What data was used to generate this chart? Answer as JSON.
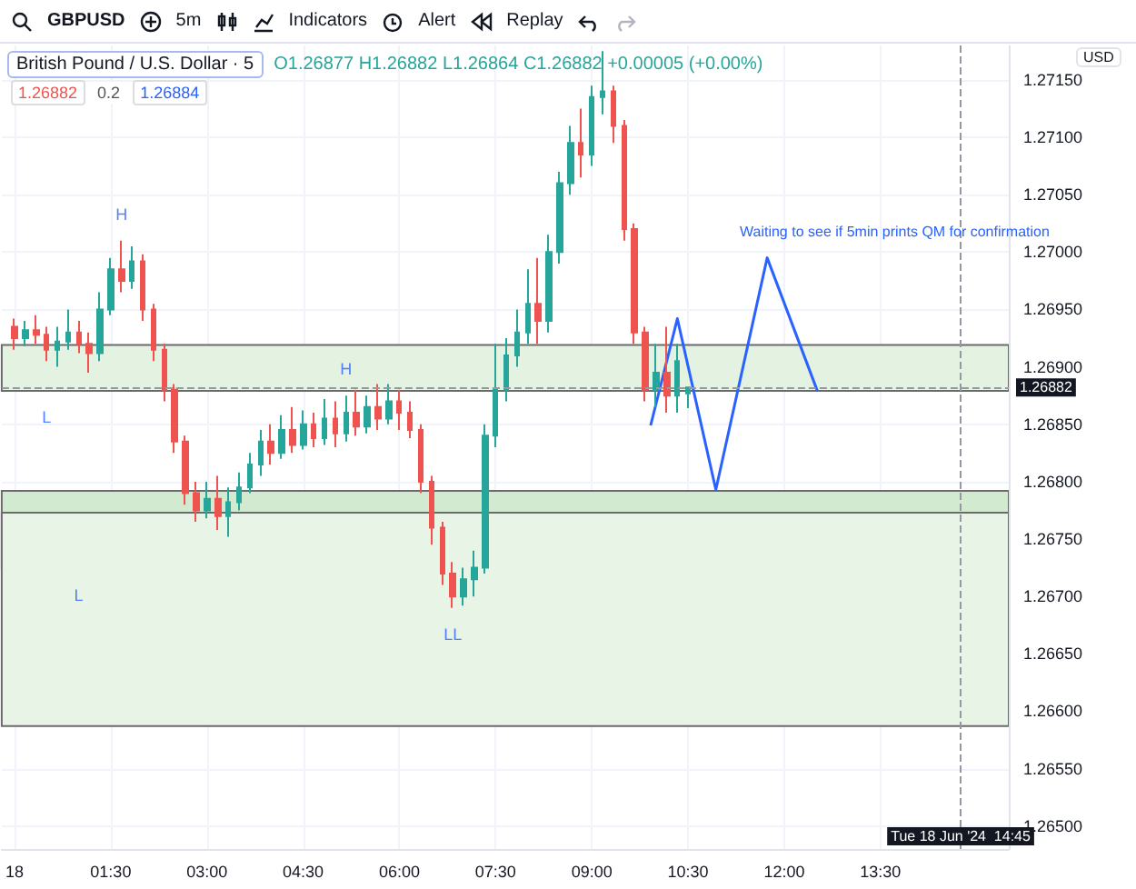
{
  "chart_data": {
    "type": "candlestick",
    "title": "British Pound / U.S. Dollar · 5",
    "subtitle": "O1.26877 H1.26882 L1.26864 C1.26882 +0.00005 (+0.00%)",
    "ylabel": "USD",
    "x": [
      "2024-06-18T00:00",
      "2024-06-18T00:10",
      "2024-06-18T00:20",
      "2024-06-18T00:30",
      "2024-06-18T00:40",
      "2024-06-18T00:50",
      "2024-06-18T01:00",
      "2024-06-18T01:10",
      "2024-06-18T01:20",
      "2024-06-18T01:30",
      "2024-06-18T01:40",
      "2024-06-18T01:50",
      "2024-06-18T02:00",
      "2024-06-18T02:10",
      "2024-06-18T02:20",
      "2024-06-18T02:30",
      "2024-06-18T02:40",
      "2024-06-18T02:50",
      "2024-06-18T03:00",
      "2024-06-18T03:10",
      "2024-06-18T03:20",
      "2024-06-18T03:30",
      "2024-06-18T03:40",
      "2024-06-18T03:50",
      "2024-06-18T04:00",
      "2024-06-18T04:10",
      "2024-06-18T04:20",
      "2024-06-18T04:30",
      "2024-06-18T04:40",
      "2024-06-18T04:50",
      "2024-06-18T05:00",
      "2024-06-18T05:10",
      "2024-06-18T05:20",
      "2024-06-18T05:30",
      "2024-06-18T05:40",
      "2024-06-18T05:50",
      "2024-06-18T06:00",
      "2024-06-18T06:10",
      "2024-06-18T06:20",
      "2024-06-18T06:30",
      "2024-06-18T06:40",
      "2024-06-18T06:50",
      "2024-06-18T07:00",
      "2024-06-18T07:10",
      "2024-06-18T07:20",
      "2024-06-18T07:30",
      "2024-06-18T07:40",
      "2024-06-18T07:50",
      "2024-06-18T08:00",
      "2024-06-18T08:10",
      "2024-06-18T08:20",
      "2024-06-18T08:30",
      "2024-06-18T08:40",
      "2024-06-18T08:50",
      "2024-06-18T09:00",
      "2024-06-18T09:10",
      "2024-06-18T09:20",
      "2024-06-18T09:30",
      "2024-06-18T09:40",
      "2024-06-18T09:50",
      "2024-06-18T10:00",
      "2024-06-18T10:10",
      "2024-06-18T10:20",
      "2024-06-18T10:30"
    ],
    "ohlc": [
      [
        1.26935,
        1.26942,
        1.26915,
        1.26925
      ],
      [
        1.26925,
        1.2694,
        1.26918,
        1.26932
      ],
      [
        1.26932,
        1.26945,
        1.2692,
        1.26928
      ],
      [
        1.26928,
        1.26935,
        1.26905,
        1.26915
      ],
      [
        1.26915,
        1.26935,
        1.269,
        1.26922
      ],
      [
        1.26922,
        1.2695,
        1.26915,
        1.2693
      ],
      [
        1.2693,
        1.2694,
        1.26912,
        1.2692
      ],
      [
        1.2692,
        1.2693,
        1.26895,
        1.26912
      ],
      [
        1.26912,
        1.26965,
        1.26905,
        1.2695
      ],
      [
        1.2695,
        1.26995,
        1.26945,
        1.26985
      ],
      [
        1.26985,
        1.2701,
        1.26965,
        1.26975
      ],
      [
        1.26975,
        1.27005,
        1.26968,
        1.26992
      ],
      [
        1.26992,
        1.26998,
        1.2694,
        1.2695
      ],
      [
        1.2695,
        1.26955,
        1.26905,
        1.26915
      ],
      [
        1.26915,
        1.2692,
        1.2687,
        1.2688
      ],
      [
        1.2688,
        1.26885,
        1.26825,
        1.26835
      ],
      [
        1.26835,
        1.2684,
        1.2678,
        1.2679
      ],
      [
        1.2679,
        1.268,
        1.26765,
        1.26775
      ],
      [
        1.26775,
        1.268,
        1.26768,
        1.26785
      ],
      [
        1.26785,
        1.26805,
        1.26758,
        1.2677
      ],
      [
        1.2677,
        1.26795,
        1.26752,
        1.26782
      ],
      [
        1.26782,
        1.26808,
        1.26775,
        1.26795
      ],
      [
        1.26795,
        1.26825,
        1.2679,
        1.26815
      ],
      [
        1.26815,
        1.26845,
        1.26805,
        1.26835
      ],
      [
        1.26835,
        1.2685,
        1.26815,
        1.26825
      ],
      [
        1.26825,
        1.26858,
        1.2682,
        1.26845
      ],
      [
        1.26845,
        1.26865,
        1.26825,
        1.26832
      ],
      [
        1.26832,
        1.26862,
        1.26828,
        1.2685
      ],
      [
        1.2685,
        1.2686,
        1.2683,
        1.26838
      ],
      [
        1.26838,
        1.26872,
        1.26832,
        1.26855
      ],
      [
        1.26855,
        1.2687,
        1.2683,
        1.26842
      ],
      [
        1.26842,
        1.26875,
        1.26835,
        1.2686
      ],
      [
        1.2686,
        1.2688,
        1.2684,
        1.26848
      ],
      [
        1.26848,
        1.26875,
        1.26842,
        1.26865
      ],
      [
        1.26865,
        1.26885,
        1.26845,
        1.26855
      ],
      [
        1.26855,
        1.26885,
        1.2685,
        1.2687
      ],
      [
        1.2687,
        1.2688,
        1.26845,
        1.2686
      ],
      [
        1.2686,
        1.2687,
        1.26838,
        1.26845
      ],
      [
        1.26845,
        1.2685,
        1.2679,
        1.268
      ],
      [
        1.268,
        1.26805,
        1.26745,
        1.2676
      ],
      [
        1.2676,
        1.26765,
        1.2671,
        1.2672
      ],
      [
        1.2672,
        1.2673,
        1.2669,
        1.267
      ],
      [
        1.267,
        1.26725,
        1.26692,
        1.26715
      ],
      [
        1.26715,
        1.2674,
        1.267,
        1.26725
      ],
      [
        1.26725,
        1.2685,
        1.2672,
        1.2684
      ],
      [
        1.2684,
        1.2692,
        1.2683,
        1.2688
      ],
      [
        1.2688,
        1.26925,
        1.2687,
        1.2691
      ],
      [
        1.2691,
        1.2695,
        1.269,
        1.2693
      ],
      [
        1.2693,
        1.26985,
        1.2692,
        1.26955
      ],
      [
        1.26955,
        1.26995,
        1.2692,
        1.2694
      ],
      [
        1.2694,
        1.27015,
        1.2693,
        1.27
      ],
      [
        1.27,
        1.2707,
        1.2699,
        1.2706
      ],
      [
        1.2706,
        1.2711,
        1.2705,
        1.27095
      ],
      [
        1.27095,
        1.27125,
        1.27065,
        1.27085
      ],
      [
        1.27085,
        1.27145,
        1.27075,
        1.27135
      ],
      [
        1.27135,
        1.27175,
        1.2712,
        1.2714
      ],
      [
        1.2714,
        1.27145,
        1.27095,
        1.2711
      ],
      [
        1.2711,
        1.27115,
        1.2701,
        1.2702
      ],
      [
        1.2702,
        1.27025,
        1.2692,
        1.2693
      ],
      [
        1.2693,
        1.26935,
        1.2687,
        1.2688
      ],
      [
        1.2688,
        1.2692,
        1.26865,
        1.26895
      ],
      [
        1.26895,
        1.26935,
        1.2686,
        1.26875
      ],
      [
        1.26875,
        1.2692,
        1.2686,
        1.26905
      ],
      [
        1.26877,
        1.26882,
        1.26864,
        1.26882
      ]
    ],
    "colors": [
      "#ef5350",
      "#26a69a",
      "#ef5350",
      "#ef5350",
      "#26a69a",
      "#26a69a",
      "#ef5350",
      "#ef5350",
      "#26a69a",
      "#26a69a",
      "#ef5350",
      "#26a69a",
      "#ef5350",
      "#ef5350",
      "#ef5350",
      "#ef5350",
      "#ef5350",
      "#ef5350",
      "#26a69a",
      "#ef5350",
      "#26a69a",
      "#26a69a",
      "#26a69a",
      "#26a69a",
      "#ef5350",
      "#26a69a",
      "#ef5350",
      "#26a69a",
      "#ef5350",
      "#26a69a",
      "#ef5350",
      "#26a69a",
      "#ef5350",
      "#26a69a",
      "#ef5350",
      "#26a69a",
      "#ef5350",
      "#ef5350",
      "#ef5350",
      "#ef5350",
      "#ef5350",
      "#ef5350",
      "#26a69a",
      "#26a69a",
      "#26a69a",
      "#26a69a",
      "#26a69a",
      "#26a69a",
      "#26a69a",
      "#ef5350",
      "#26a69a",
      "#26a69a",
      "#26a69a",
      "#ef5350",
      "#26a69a",
      "#26a69a",
      "#ef5350",
      "#ef5350",
      "#ef5350",
      "#ef5350",
      "#26a69a",
      "#ef5350",
      "#26a69a",
      "#26a69a"
    ],
    "series": [
      {
        "type": "line",
        "color": "#2962ff",
        "x": [
          "2024-06-18T09:55",
          "2024-06-18T10:20",
          "2024-06-18T10:56",
          "2024-06-18T11:44",
          "2024-06-18T12:31"
        ],
        "values": [
          1.26849,
          1.26942,
          1.26793,
          1.26995,
          1.26879
        ]
      }
    ],
    "marker": "none",
    "line_style": "solid",
    "xlim": [
      "2024-06-17T23:48",
      "2024-06-18T15:30"
    ],
    "xticks": [
      {
        "value": "2024-06-18T00:00",
        "label": "18"
      },
      {
        "value": "2024-06-18T01:30",
        "label": "01:30"
      },
      {
        "value": "2024-06-18T03:00",
        "label": "03:00"
      },
      {
        "value": "2024-06-18T04:30",
        "label": "04:30"
      },
      {
        "value": "2024-06-18T06:00",
        "label": "06:00"
      },
      {
        "value": "2024-06-18T07:30",
        "label": "07:30"
      },
      {
        "value": "2024-06-18T09:00",
        "label": "09:00"
      },
      {
        "value": "2024-06-18T10:30",
        "label": "10:30"
      },
      {
        "value": "2024-06-18T12:00",
        "label": "12:00"
      },
      {
        "value": "2024-06-18T13:30",
        "label": "13:30"
      }
    ],
    "ylim": [
      1.2648,
      1.2718
    ],
    "yticks": [
      {
        "value": 1.265,
        "label": "1.26500"
      },
      {
        "value": 1.2655,
        "label": "1.26550"
      },
      {
        "value": 1.266,
        "label": "1.26600"
      },
      {
        "value": 1.2665,
        "label": "1.26650"
      },
      {
        "value": 1.267,
        "label": "1.26700"
      },
      {
        "value": 1.2675,
        "label": "1.26750"
      },
      {
        "value": 1.268,
        "label": "1.26800"
      },
      {
        "value": 1.2685,
        "label": "1.26850"
      },
      {
        "value": 1.269,
        "label": "1.26900"
      },
      {
        "value": 1.2695,
        "label": "1.26950"
      },
      {
        "value": 1.27,
        "label": "1.27000"
      },
      {
        "value": 1.2705,
        "label": "1.27050"
      },
      {
        "value": 1.271,
        "label": "1.27100"
      },
      {
        "value": 1.2715,
        "label": "1.27150"
      }
    ],
    "grid": true,
    "bands": [
      {
        "axis": "y",
        "from": 1.26879,
        "to": 1.26919,
        "color": "#e3f2e1"
      },
      {
        "axis": "y",
        "from": 1.26724,
        "to": 1.26792,
        "color": "#d2ebd0"
      },
      {
        "axis": "y",
        "from": 1.26587,
        "to": 1.26773,
        "color": "#e8f5e6"
      }
    ],
    "ref_lines": [
      {
        "axis": "y",
        "value": 1.26882,
        "label": "1.26882",
        "color": "#9598a1",
        "line_style": "dashed"
      },
      {
        "axis": "x",
        "value": "2024-06-18T14:45",
        "label": "Tue 18 Jun '24  14:45",
        "color": "#9598a1",
        "line_style": "dashed"
      }
    ],
    "annotations": [
      "GBPUSD",
      "5m",
      "Indicators",
      "Alert",
      "Replay",
      "1.26882",
      "0.2",
      "1.26884",
      "Waiting to see if 5min prints QM for confirmation",
      {
        "text": "H",
        "x": "2024-06-18T01:40",
        "y": 1.2701
      },
      {
        "text": "L",
        "x": "2024-06-18T00:30",
        "y": 1.26879
      },
      {
        "text": "H",
        "x": "2024-06-18T05:10",
        "y": 1.26875
      },
      {
        "text": "L",
        "x": "2024-06-18T01:00",
        "y": 1.26724
      },
      {
        "text": "LL",
        "x": "2024-06-18T06:50",
        "y": 1.2669
      }
    ]
  }
}
